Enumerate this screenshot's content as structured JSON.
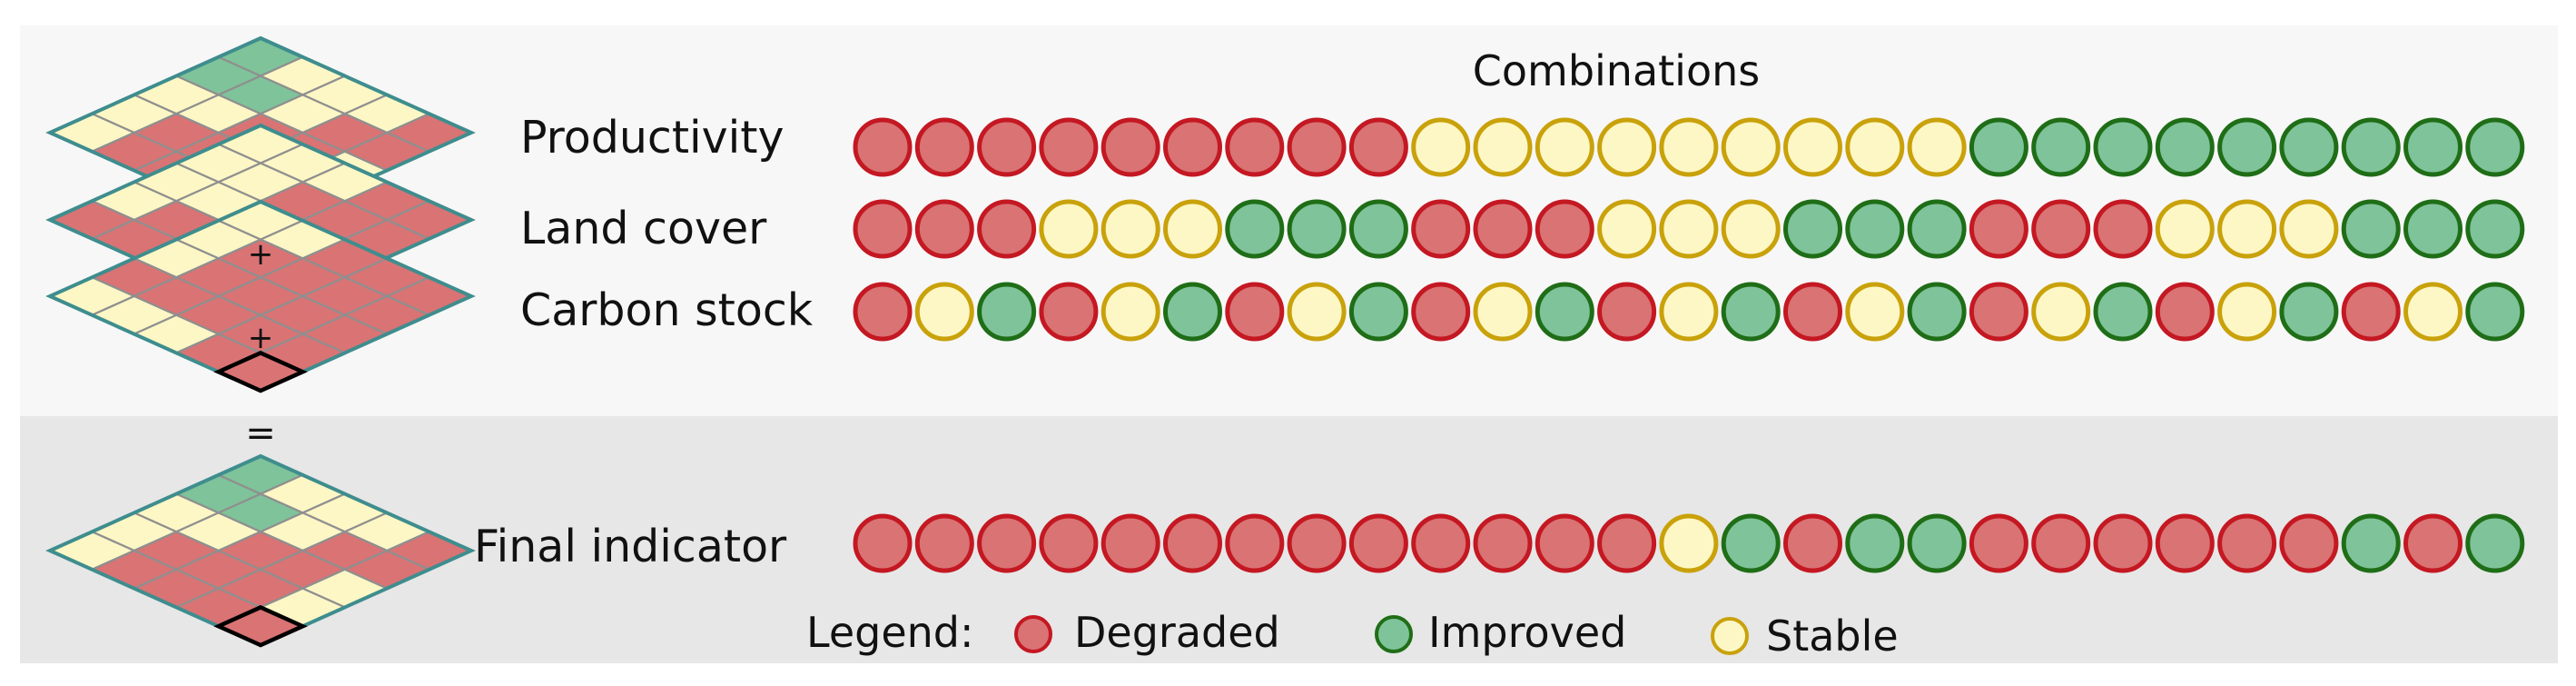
{
  "title": "Combinations",
  "rows": [
    {
      "label": "Productivity",
      "sequence": "DDDDDDDDDSSSSSSSSSIIIIIIIII"
    },
    {
      "label": "Land cover",
      "sequence": "DDDSSSIIIDDDSSSIIIDDDSSSIII"
    },
    {
      "label": "Carbon stock",
      "sequence": "DSIDSIDSIDSIDSIDSIDSIDSIDSI"
    }
  ],
  "final": {
    "label": "Final indicator",
    "sequence": "DDDDDDDDDDDDDSIDIIDDDDDDIDI"
  },
  "operators": {
    "plus": "+",
    "equals": "="
  },
  "legend": {
    "prefix": "Legend:",
    "items": [
      {
        "key": "D",
        "label": "Degraded"
      },
      {
        "key": "I",
        "label": "Improved"
      },
      {
        "key": "S",
        "label": "Stable"
      }
    ]
  },
  "states": {
    "D": {
      "fill": "#d97374",
      "stroke": "#c41822"
    },
    "S": {
      "fill": "#fdf7c5",
      "stroke": "#c9a20b"
    },
    "I": {
      "fill": "#7ec399",
      "stroke": "#1f6e17"
    }
  },
  "maps": {
    "grid_stroke": "#8f8f8f",
    "border_stroke": "#3f8d8e",
    "highlight_stroke": "#000000",
    "layers": [
      [
        "SIIDSSDDDDDDSDDDDDDDSDSSSSS"
      ],
      [
        "DSSSSDDSSSDSSSSSSSSSSSSSSSSSSSSS"
      ],
      [
        "DSSSSDDSSSDSSSSSSSSSSSSSSSSSSSSS"
      ]
    ]
  }
}
